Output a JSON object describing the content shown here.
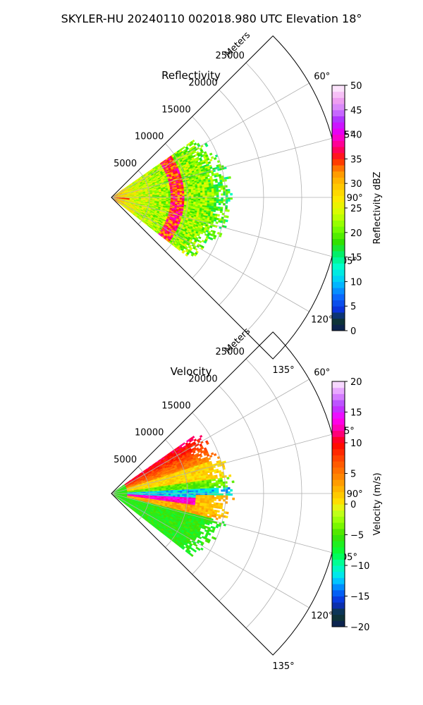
{
  "figure": {
    "suptitle": "SKYLER-HU  20240110  002018.980 UTC Elevation 18°"
  },
  "chart_data": [
    {
      "type": "heatmap",
      "title": "Reflectivity",
      "projection": "polar-sector",
      "theta_unit": "degrees",
      "theta_range": [
        45,
        135
      ],
      "theta_ticks": [
        60,
        75,
        90,
        105,
        120,
        135
      ],
      "theta_tick_labels": [
        "60°",
        "75°",
        "90°",
        "105°",
        "120°",
        "135°"
      ],
      "r_label": "Meters",
      "r_range": [
        0,
        30000
      ],
      "r_ticks": [
        5000,
        10000,
        15000,
        20000,
        25000
      ],
      "r_tick_labels": [
        "5000",
        "10000",
        "15000",
        "20000",
        "25000"
      ],
      "grid": true,
      "data_extent": {
        "theta": [
          55,
          128
        ],
        "r_max": 16000
      },
      "band": {
        "description_value": "high reflectivity arc",
        "r": 8500,
        "value": 36
      },
      "colorbar": {
        "label": "Reflectivity dBZ",
        "range": [
          0,
          50
        ],
        "ticks": [
          0,
          5,
          10,
          15,
          20,
          25,
          30,
          35,
          40,
          45,
          50
        ],
        "tick_labels": [
          "0",
          "5",
          "10",
          "15",
          "20",
          "25",
          "30",
          "35",
          "40",
          "45",
          "50"
        ],
        "stops": [
          {
            "v": 0,
            "c": "#0b1d5a"
          },
          {
            "v": 2.5,
            "c": "#0d3a2e"
          },
          {
            "v": 4,
            "c": "#0a2bd6"
          },
          {
            "v": 7,
            "c": "#0b6bff"
          },
          {
            "v": 10,
            "c": "#00c8ff"
          },
          {
            "v": 13,
            "c": "#00ffd0"
          },
          {
            "v": 15.5,
            "c": "#00f070"
          },
          {
            "v": 18,
            "c": "#2ee000"
          },
          {
            "v": 21,
            "c": "#7dff00"
          },
          {
            "v": 24,
            "c": "#d4ff00"
          },
          {
            "v": 27,
            "c": "#ffe800"
          },
          {
            "v": 30,
            "c": "#ffc000"
          },
          {
            "v": 32.5,
            "c": "#ff9000"
          },
          {
            "v": 35,
            "c": "#ff2000"
          },
          {
            "v": 37,
            "c": "#ff0060"
          },
          {
            "v": 39,
            "c": "#ff00c0"
          },
          {
            "v": 41,
            "c": "#e000ff"
          },
          {
            "v": 43,
            "c": "#b030ff"
          },
          {
            "v": 45,
            "c": "#d080ff"
          },
          {
            "v": 47,
            "c": "#f0a0f0"
          },
          {
            "v": 50,
            "c": "#fff4ff"
          }
        ]
      }
    },
    {
      "type": "heatmap",
      "title": "Velocity",
      "projection": "polar-sector",
      "theta_unit": "degrees",
      "theta_range": [
        45,
        135
      ],
      "theta_ticks": [
        60,
        75,
        90,
        105,
        120,
        135
      ],
      "theta_tick_labels": [
        "60°",
        "75°",
        "90°",
        "105°",
        "120°",
        "135°"
      ],
      "r_label": "Meters",
      "r_range": [
        0,
        30000
      ],
      "r_ticks": [
        5000,
        10000,
        15000,
        20000,
        25000
      ],
      "r_tick_labels": [
        "5000",
        "10000",
        "15000",
        "20000",
        "25000"
      ],
      "grid": true,
      "data_extent": {
        "theta": [
          55,
          128
        ],
        "r_max": 16000
      },
      "colorbar": {
        "label": "Velocity (m/s)",
        "range": [
          -20,
          20
        ],
        "ticks": [
          -20,
          -15,
          -10,
          -5,
          0,
          5,
          10,
          15,
          20
        ],
        "tick_labels": [
          "−20",
          "−15",
          "−10",
          "−5",
          "0",
          "5",
          "10",
          "15",
          "20"
        ],
        "stops": [
          {
            "v": -20,
            "c": "#0b1d5a"
          },
          {
            "v": -18,
            "c": "#0d3a2e"
          },
          {
            "v": -16,
            "c": "#0a2bd6"
          },
          {
            "v": -14,
            "c": "#0070ff"
          },
          {
            "v": -12,
            "c": "#00e0ff"
          },
          {
            "v": -10,
            "c": "#00ffb0"
          },
          {
            "v": -8,
            "c": "#00ff40"
          },
          {
            "v": -5,
            "c": "#40e000"
          },
          {
            "v": -3,
            "c": "#8cff00"
          },
          {
            "v": -1,
            "c": "#d0ff20"
          },
          {
            "v": 0,
            "c": "#ffe800"
          },
          {
            "v": 2,
            "c": "#ffc000"
          },
          {
            "v": 4,
            "c": "#ff9000"
          },
          {
            "v": 7,
            "c": "#ff5000"
          },
          {
            "v": 10,
            "c": "#ff0000"
          },
          {
            "v": 12,
            "c": "#ff00a0"
          },
          {
            "v": 14,
            "c": "#ff00ff"
          },
          {
            "v": 16,
            "c": "#b040ff"
          },
          {
            "v": 18,
            "c": "#e090ff"
          },
          {
            "v": 20,
            "c": "#fff0ff"
          }
        ]
      }
    }
  ]
}
